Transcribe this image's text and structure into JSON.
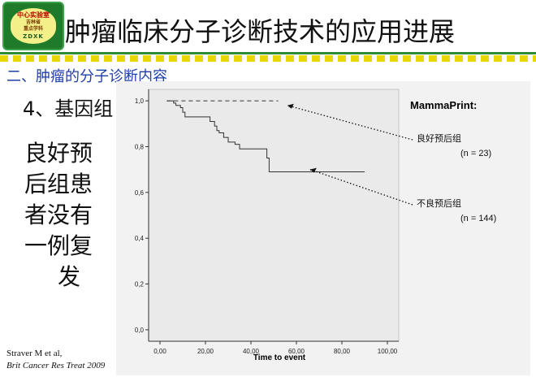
{
  "logo": {
    "line1": "中心实验室",
    "line2": "吉林省",
    "line3": "重点学科",
    "line4": "ZDXK"
  },
  "slide": {
    "title": "肿瘤临床分子诊断技术的应用进展",
    "section": "二、肿瘤的分子诊断内容",
    "subheading": "4、基因组",
    "body_lines": [
      "良好预",
      "后组患",
      "者没有",
      "一例复",
      "发"
    ],
    "citation_line1": "Straver M et al,",
    "citation_line2": "Brit Cancer Res Treat 2009"
  },
  "colors": {
    "title_blue": "#1f3fa8",
    "green_bar": "#2e8b3a",
    "yellow_dash": "#e6d800",
    "plot_bg": "#eaeaea"
  },
  "chart_data": {
    "type": "line",
    "title": "MammaPrint:",
    "xlabel": "Time to event",
    "ylabel": "",
    "xlim": [
      -5,
      105
    ],
    "ylim": [
      -0.05,
      1.05
    ],
    "x_ticks": [
      "0,00",
      "20,00",
      "40,00",
      "60,00",
      "80,00",
      "100,00"
    ],
    "y_ticks": [
      "0,0",
      "0,2",
      "0,4",
      "0,6",
      "0,8",
      "1,0"
    ],
    "x_tick_values": [
      0,
      20,
      40,
      60,
      80,
      100
    ],
    "y_tick_values": [
      0,
      0.2,
      0.4,
      0.6,
      0.8,
      1.0
    ],
    "grid": false,
    "series": [
      {
        "name": "良好预后组",
        "n_label": "(n = 23)",
        "style": "dashed",
        "x": [
          3,
          52
        ],
        "y": [
          1.0,
          1.0
        ]
      },
      {
        "name": "不良预后组",
        "n_label": "(n = 144)",
        "style": "step",
        "x": [
          3,
          6,
          7,
          9,
          10,
          11,
          22,
          24,
          25,
          26,
          28,
          30,
          33,
          35,
          38,
          40,
          46,
          47,
          48,
          90
        ],
        "y": [
          1.0,
          0.99,
          0.98,
          0.97,
          0.95,
          0.93,
          0.91,
          0.89,
          0.87,
          0.86,
          0.84,
          0.82,
          0.81,
          0.79,
          0.79,
          0.79,
          0.79,
          0.75,
          0.69,
          0.69
        ]
      }
    ]
  }
}
